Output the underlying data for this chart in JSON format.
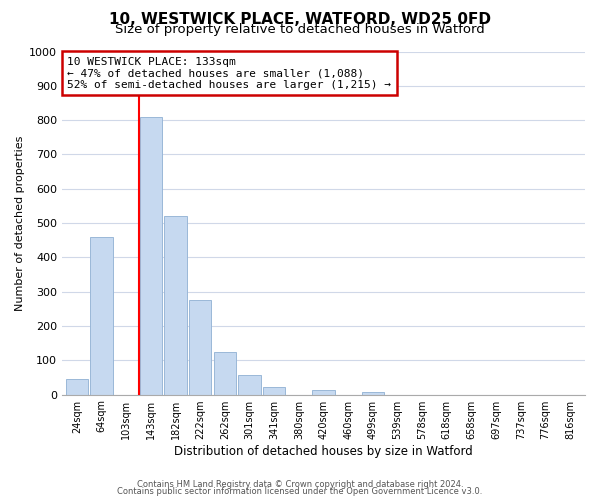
{
  "title": "10, WESTWICK PLACE, WATFORD, WD25 0FD",
  "subtitle": "Size of property relative to detached houses in Watford",
  "xlabel": "Distribution of detached houses by size in Watford",
  "ylabel": "Number of detached properties",
  "bar_labels": [
    "24sqm",
    "64sqm",
    "103sqm",
    "143sqm",
    "182sqm",
    "222sqm",
    "262sqm",
    "301sqm",
    "341sqm",
    "380sqm",
    "420sqm",
    "460sqm",
    "499sqm",
    "539sqm",
    "578sqm",
    "618sqm",
    "658sqm",
    "697sqm",
    "737sqm",
    "776sqm",
    "816sqm"
  ],
  "bar_heights": [
    46,
    460,
    0,
    810,
    520,
    275,
    125,
    58,
    22,
    0,
    12,
    0,
    8,
    0,
    0,
    0,
    0,
    0,
    0,
    0,
    0
  ],
  "bar_color": "#c6d9f0",
  "bar_edge_color": "#9ab8d8",
  "red_line_x": 2.5,
  "ylim": [
    0,
    1000
  ],
  "yticks": [
    0,
    100,
    200,
    300,
    400,
    500,
    600,
    700,
    800,
    900,
    1000
  ],
  "annotation_title": "10 WESTWICK PLACE: 133sqm",
  "annotation_line1": "← 47% of detached houses are smaller (1,088)",
  "annotation_line2": "52% of semi-detached houses are larger (1,215) →",
  "annotation_box_color": "#ffffff",
  "annotation_box_edge": "#cc0000",
  "footer1": "Contains HM Land Registry data © Crown copyright and database right 2024.",
  "footer2": "Contains public sector information licensed under the Open Government Licence v3.0.",
  "background_color": "#ffffff",
  "grid_color": "#d0d8e8",
  "title_fontsize": 11,
  "subtitle_fontsize": 9.5
}
